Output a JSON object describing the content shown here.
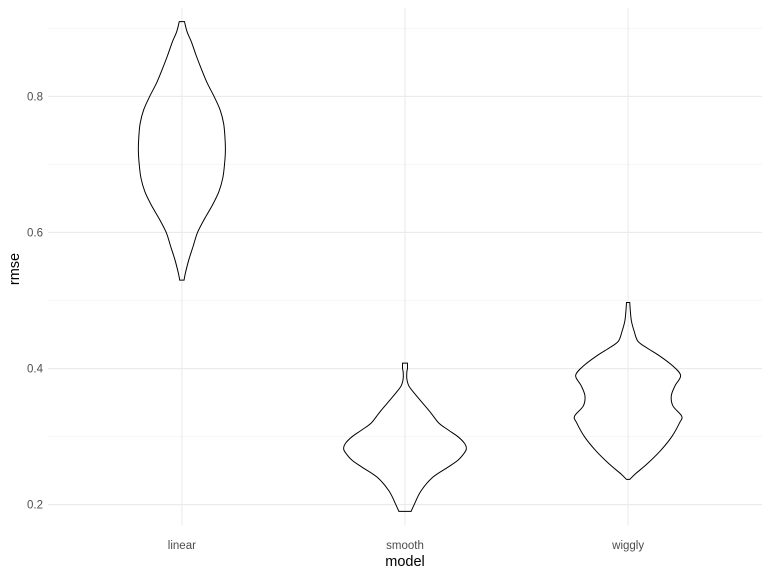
{
  "chart_data": {
    "type": "violin",
    "title": "",
    "xlabel": "model",
    "ylabel": "rmse",
    "categories": [
      "linear",
      "smooth",
      "wiggly"
    ],
    "ylim": [
      0.17,
      0.93
    ],
    "y_ticks": [
      0.2,
      0.4,
      0.6,
      0.8
    ],
    "y_tick_labels": [
      "0.2",
      "0.4",
      "0.6",
      "0.8"
    ],
    "grid": true,
    "legend": "none",
    "violins": [
      {
        "category": "linear",
        "max_half_width": 0.195,
        "density": [
          [
            0.53,
            0.05
          ],
          [
            0.54,
            0.08
          ],
          [
            0.56,
            0.16
          ],
          [
            0.58,
            0.26
          ],
          [
            0.6,
            0.36
          ],
          [
            0.62,
            0.52
          ],
          [
            0.64,
            0.7
          ],
          [
            0.66,
            0.85
          ],
          [
            0.68,
            0.94
          ],
          [
            0.7,
            0.98
          ],
          [
            0.72,
            1.0
          ],
          [
            0.74,
            0.99
          ],
          [
            0.76,
            0.96
          ],
          [
            0.78,
            0.88
          ],
          [
            0.8,
            0.74
          ],
          [
            0.82,
            0.58
          ],
          [
            0.84,
            0.45
          ],
          [
            0.86,
            0.33
          ],
          [
            0.88,
            0.22
          ],
          [
            0.895,
            0.12
          ],
          [
            0.91,
            0.06
          ]
        ]
      },
      {
        "category": "smooth",
        "max_half_width": 0.275,
        "density": [
          [
            0.19,
            0.1
          ],
          [
            0.2,
            0.15
          ],
          [
            0.22,
            0.26
          ],
          [
            0.24,
            0.45
          ],
          [
            0.255,
            0.7
          ],
          [
            0.265,
            0.86
          ],
          [
            0.275,
            0.96
          ],
          [
            0.282,
            1.0
          ],
          [
            0.29,
            0.97
          ],
          [
            0.3,
            0.86
          ],
          [
            0.31,
            0.7
          ],
          [
            0.32,
            0.55
          ],
          [
            0.335,
            0.42
          ],
          [
            0.35,
            0.28
          ],
          [
            0.365,
            0.14
          ],
          [
            0.375,
            0.06
          ],
          [
            0.385,
            0.03
          ],
          [
            0.395,
            0.03
          ],
          [
            0.4,
            0.04
          ],
          [
            0.408,
            0.04
          ]
        ]
      },
      {
        "category": "wiggly",
        "max_half_width": 0.245,
        "density": [
          [
            0.237,
            0.03
          ],
          [
            0.245,
            0.13
          ],
          [
            0.26,
            0.35
          ],
          [
            0.28,
            0.6
          ],
          [
            0.3,
            0.8
          ],
          [
            0.32,
            0.94
          ],
          [
            0.33,
            0.98
          ],
          [
            0.345,
            0.82
          ],
          [
            0.36,
            0.79
          ],
          [
            0.375,
            0.86
          ],
          [
            0.39,
            0.96
          ],
          [
            0.405,
            0.8
          ],
          [
            0.42,
            0.55
          ],
          [
            0.43,
            0.35
          ],
          [
            0.44,
            0.18
          ],
          [
            0.455,
            0.11
          ],
          [
            0.47,
            0.06
          ],
          [
            0.485,
            0.04
          ],
          [
            0.497,
            0.03
          ]
        ]
      }
    ]
  }
}
